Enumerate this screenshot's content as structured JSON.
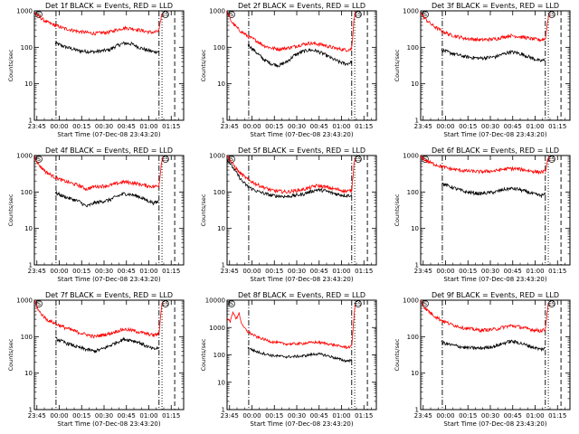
{
  "layout": {
    "columns": 3,
    "rows": 3
  },
  "common": {
    "ylabel": "Counts/sec",
    "xlabel": "Start Time (07-Dec-08 23:43:20)",
    "x_tick_labels": [
      "23:45",
      "00:00",
      "00:15",
      "00:30",
      "00:45",
      "01:00",
      "01:15"
    ],
    "x_tick_minutes": [
      1.67,
      16.67,
      31.67,
      46.67,
      61.67,
      76.67,
      91.67
    ],
    "x_range_minutes": [
      0,
      100
    ],
    "y_log": true,
    "y_range": [
      1,
      1000
    ],
    "y_tick_values": [
      1,
      10,
      100,
      1000
    ],
    "y_tick_labels": [
      "1",
      "10",
      "100",
      "1000"
    ],
    "marker_label": "S",
    "marker_end_label": "ES",
    "vlines": [
      {
        "minute": 14.5,
        "style": "dashdot"
      },
      {
        "minute": 83.5,
        "style": "dashdot"
      },
      {
        "minute": 85.5,
        "style": "dotted"
      },
      {
        "minute": 94.0,
        "style": "dashed"
      }
    ],
    "colors": {
      "events": "#000000",
      "lld": "#ff0000",
      "axes": "#000000"
    }
  },
  "chart_data": [
    {
      "type": "line",
      "title": "Det 1f BLACK = Events, RED = LLD",
      "ylim": [
        1,
        1000
      ],
      "series": [
        {
          "name": "Events",
          "color": "#000000",
          "x": [
            14,
            20,
            30,
            40,
            50,
            55,
            60,
            65,
            70,
            75,
            80,
            83.5
          ],
          "y": [
            130,
            105,
            80,
            75,
            85,
            110,
            130,
            125,
            100,
            85,
            75,
            78
          ]
        },
        {
          "name": "LLD",
          "color": "#ff0000",
          "x": [
            0,
            3,
            8,
            14,
            20,
            30,
            40,
            50,
            55,
            60,
            65,
            70,
            75,
            80,
            83.5,
            85,
            86
          ],
          "y": [
            900,
            700,
            500,
            400,
            330,
            270,
            240,
            260,
            300,
            340,
            330,
            300,
            270,
            255,
            280,
            700,
            950
          ]
        }
      ]
    },
    {
      "type": "line",
      "title": "Det 2f BLACK = Events, RED = LLD",
      "ylim": [
        1,
        1000
      ],
      "series": [
        {
          "name": "Events",
          "color": "#000000",
          "x": [
            14,
            20,
            25,
            30,
            35,
            40,
            45,
            50,
            55,
            60,
            65,
            70,
            75,
            80,
            83.5
          ],
          "y": [
            120,
            70,
            45,
            35,
            32,
            40,
            60,
            75,
            85,
            80,
            65,
            50,
            40,
            35,
            40
          ]
        },
        {
          "name": "LLD",
          "color": "#ff0000",
          "x": [
            0,
            3,
            8,
            14,
            20,
            25,
            30,
            35,
            40,
            45,
            50,
            55,
            60,
            65,
            70,
            75,
            80,
            83.5,
            85,
            86
          ],
          "y": [
            950,
            500,
            300,
            200,
            150,
            110,
            95,
            90,
            95,
            105,
            120,
            130,
            125,
            115,
            100,
            90,
            85,
            90,
            600,
            1000
          ]
        }
      ]
    },
    {
      "type": "line",
      "title": "Det 3f BLACK = Events, RED = LLD",
      "ylim": [
        1,
        1000
      ],
      "series": [
        {
          "name": "Events",
          "color": "#000000",
          "x": [
            14,
            20,
            30,
            40,
            50,
            55,
            60,
            65,
            70,
            75,
            80,
            83.5
          ],
          "y": [
            85,
            70,
            55,
            50,
            55,
            65,
            75,
            70,
            60,
            50,
            42,
            45
          ]
        },
        {
          "name": "LLD",
          "color": "#ff0000",
          "x": [
            0,
            3,
            8,
            14,
            20,
            30,
            40,
            50,
            55,
            60,
            65,
            70,
            75,
            80,
            83.5,
            85,
            86
          ],
          "y": [
            900,
            600,
            400,
            280,
            220,
            175,
            160,
            170,
            190,
            210,
            200,
            185,
            170,
            160,
            170,
            500,
            950
          ]
        }
      ]
    },
    {
      "type": "line",
      "title": "Det 4f BLACK = Events, RED = LLD",
      "ylim": [
        1,
        1000
      ],
      "series": [
        {
          "name": "Events",
          "color": "#000000",
          "x": [
            14,
            20,
            30,
            35,
            40,
            50,
            55,
            60,
            65,
            70,
            75,
            80,
            83.5
          ],
          "y": [
            95,
            75,
            55,
            40,
            50,
            60,
            75,
            90,
            85,
            75,
            60,
            50,
            55
          ]
        },
        {
          "name": "LLD",
          "color": "#ff0000",
          "x": [
            0,
            3,
            8,
            14,
            20,
            30,
            35,
            40,
            50,
            55,
            60,
            65,
            70,
            75,
            80,
            83.5,
            85,
            86
          ],
          "y": [
            950,
            550,
            350,
            250,
            200,
            150,
            120,
            140,
            150,
            170,
            190,
            180,
            165,
            150,
            140,
            150,
            600,
            1000
          ]
        }
      ]
    },
    {
      "type": "line",
      "title": "Det 5f BLACK = Events, RED = LLD",
      "ylim": [
        1,
        1000
      ],
      "series": [
        {
          "name": "Events",
          "color": "#000000",
          "x": [
            0,
            5,
            10,
            14,
            20,
            30,
            40,
            50,
            55,
            60,
            65,
            70,
            75,
            80,
            83.5
          ],
          "y": [
            800,
            400,
            200,
            140,
            105,
            80,
            75,
            85,
            100,
            115,
            110,
            95,
            85,
            80,
            82
          ]
        },
        {
          "name": "LLD",
          "color": "#ff0000",
          "x": [
            0,
            3,
            8,
            14,
            20,
            30,
            40,
            50,
            55,
            60,
            65,
            70,
            75,
            80,
            83.5,
            85,
            86
          ],
          "y": [
            1000,
            650,
            350,
            220,
            160,
            110,
            100,
            115,
            130,
            150,
            140,
            125,
            115,
            105,
            110,
            600,
            1000
          ]
        }
      ]
    },
    {
      "type": "line",
      "title": "Det 6f BLACK = Events, RED = LLD",
      "ylim": [
        1,
        1000
      ],
      "series": [
        {
          "name": "Events",
          "color": "#000000",
          "x": [
            14,
            20,
            30,
            40,
            50,
            55,
            60,
            65,
            70,
            75,
            80,
            83.5
          ],
          "y": [
            170,
            140,
            100,
            90,
            100,
            115,
            125,
            120,
            105,
            90,
            80,
            85
          ]
        },
        {
          "name": "LLD",
          "color": "#ff0000",
          "x": [
            0,
            3,
            8,
            14,
            20,
            30,
            40,
            50,
            55,
            60,
            65,
            70,
            75,
            80,
            83.5,
            85,
            86
          ],
          "y": [
            950,
            750,
            600,
            500,
            430,
            380,
            360,
            380,
            420,
            440,
            430,
            400,
            370,
            350,
            370,
            700,
            1000
          ]
        }
      ]
    },
    {
      "type": "line",
      "title": "Det 7f BLACK = Events, RED = LLD",
      "ylim": [
        1,
        1000
      ],
      "series": [
        {
          "name": "Events",
          "color": "#000000",
          "x": [
            14,
            20,
            30,
            40,
            45,
            50,
            55,
            60,
            65,
            70,
            75,
            80,
            83.5
          ],
          "y": [
            90,
            70,
            50,
            40,
            45,
            55,
            70,
            85,
            80,
            70,
            55,
            45,
            50
          ]
        },
        {
          "name": "LLD",
          "color": "#ff0000",
          "x": [
            0,
            3,
            8,
            14,
            20,
            30,
            40,
            45,
            50,
            55,
            60,
            65,
            70,
            75,
            80,
            83.5,
            85,
            86
          ],
          "y": [
            1000,
            500,
            300,
            230,
            180,
            130,
            100,
            110,
            120,
            140,
            160,
            150,
            135,
            120,
            110,
            120,
            600,
            1000
          ]
        }
      ]
    },
    {
      "type": "line",
      "title": "Det 8f BLACK = Events, RED = LLD",
      "ylim": [
        1,
        10000
      ],
      "series": [
        {
          "name": "Events",
          "color": "#000000",
          "x": [
            14,
            20,
            30,
            40,
            50,
            55,
            60,
            65,
            70,
            75,
            80,
            83.5
          ],
          "y": [
            180,
            130,
            95,
            85,
            90,
            100,
            110,
            100,
            85,
            70,
            60,
            65
          ]
        },
        {
          "name": "LLD",
          "color": "#ff0000",
          "x": [
            0,
            2,
            4,
            6,
            8,
            10,
            14,
            20,
            30,
            40,
            50,
            55,
            60,
            65,
            70,
            75,
            80,
            83.5,
            85,
            86
          ],
          "y": [
            2500,
            1500,
            4000,
            2000,
            3500,
            1200,
            700,
            450,
            300,
            250,
            260,
            280,
            290,
            270,
            240,
            210,
            190,
            200,
            2500,
            9000
          ]
        }
      ]
    },
    {
      "type": "line",
      "title": "Det 9f BLACK = Events, RED = LLD",
      "ylim": [
        1,
        1000
      ],
      "series": [
        {
          "name": "Events",
          "color": "#000000",
          "x": [
            14,
            20,
            30,
            40,
            50,
            55,
            60,
            65,
            70,
            75,
            80,
            83.5
          ],
          "y": [
            70,
            60,
            50,
            48,
            55,
            65,
            75,
            70,
            60,
            52,
            45,
            48
          ]
        },
        {
          "name": "LLD",
          "color": "#ff0000",
          "x": [
            0,
            3,
            8,
            14,
            20,
            30,
            40,
            50,
            55,
            60,
            65,
            70,
            75,
            80,
            83.5,
            85,
            86
          ],
          "y": [
            1000,
            600,
            400,
            280,
            220,
            170,
            150,
            160,
            180,
            200,
            190,
            170,
            155,
            145,
            155,
            600,
            1000
          ]
        }
      ]
    }
  ]
}
